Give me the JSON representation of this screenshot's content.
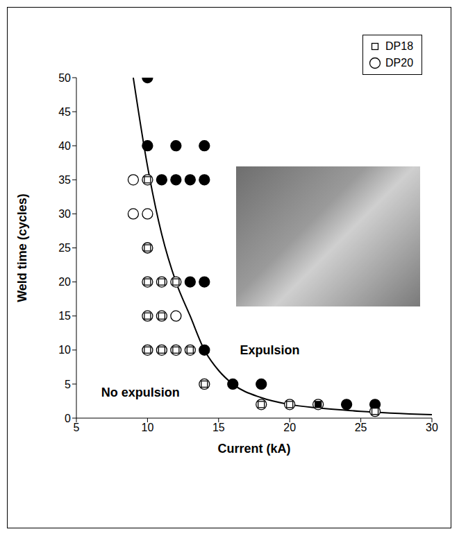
{
  "chart_data": {
    "type": "scatter",
    "x_label": "Current (kA)",
    "y_label": "Weld time (cycles)",
    "xlim": [
      5,
      30
    ],
    "xticks": [
      5,
      10,
      15,
      20,
      25,
      30
    ],
    "ylim": [
      0,
      50
    ],
    "yticks": [
      0,
      5,
      10,
      15,
      20,
      25,
      30,
      35,
      40,
      45,
      50
    ],
    "grid": false,
    "legend": "upper right",
    "series": [
      {
        "name": "DP20",
        "marker": "circle",
        "color": "#000000",
        "x": [
          9,
          10,
          9,
          10,
          10,
          10,
          11,
          12,
          10,
          11,
          12,
          10,
          11,
          12,
          13,
          14,
          18,
          20,
          22,
          26,
          10,
          10,
          12,
          14,
          11,
          12,
          13,
          14,
          13,
          14,
          14,
          16,
          18,
          24,
          26
        ],
        "y": [
          35,
          35,
          30,
          30,
          25,
          20,
          20,
          20,
          15,
          15,
          15,
          10,
          10,
          10,
          10,
          5,
          2,
          2,
          2,
          1,
          50,
          40,
          40,
          40,
          35,
          35,
          35,
          35,
          20,
          20,
          10,
          5,
          5,
          2,
          2
        ],
        "expulsion": [
          false,
          false,
          false,
          false,
          false,
          false,
          false,
          false,
          false,
          false,
          false,
          false,
          false,
          false,
          false,
          false,
          false,
          false,
          false,
          false,
          true,
          true,
          true,
          true,
          true,
          true,
          true,
          true,
          true,
          true,
          true,
          true,
          true,
          true,
          true
        ]
      },
      {
        "name": "DP18",
        "marker": "square",
        "color": "#000000",
        "x": [
          10,
          10,
          10,
          11,
          12,
          10,
          11,
          10,
          11,
          12,
          13,
          14,
          18,
          20,
          26,
          13,
          22
        ],
        "y": [
          35,
          25,
          20,
          20,
          20,
          15,
          15,
          10,
          10,
          10,
          10,
          5,
          2,
          2,
          1,
          20,
          2
        ],
        "expulsion": [
          false,
          false,
          false,
          false,
          false,
          false,
          false,
          false,
          false,
          false,
          false,
          false,
          false,
          false,
          false,
          true,
          true
        ]
      }
    ],
    "curve": {
      "color": "#000000",
      "x": [
        9,
        10,
        11,
        12,
        13,
        14,
        15,
        16,
        18,
        20,
        22,
        25,
        30
      ],
      "y": [
        50,
        37,
        27,
        20,
        15,
        10,
        7,
        5,
        3,
        2,
        1.5,
        1,
        0.5
      ]
    },
    "annotations": [
      {
        "text": "Expulsion",
        "x": 18.6,
        "y": 10
      },
      {
        "text": "No expulsion",
        "x": 9.5,
        "y": 3.8
      }
    ]
  }
}
